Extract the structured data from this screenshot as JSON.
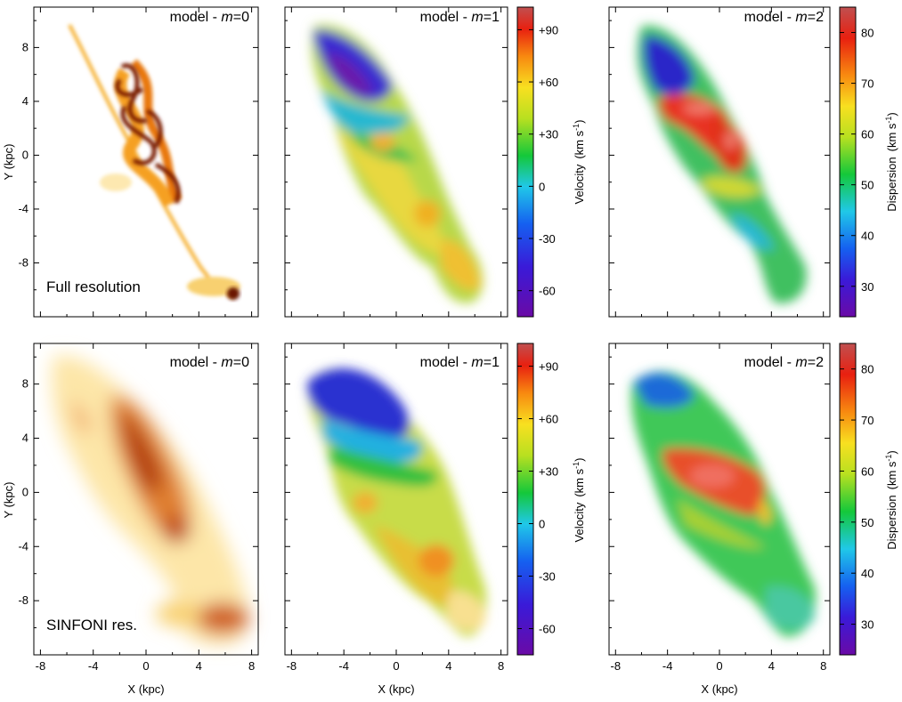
{
  "figure": {
    "rows": [
      {
        "label": "Full resolution"
      },
      {
        "label": "SINFONI res."
      }
    ],
    "axis_labels": {
      "x": "X (kpc)",
      "y": "Y (kpc)"
    },
    "colorbars": [
      {
        "label": "Velocity",
        "unit": "km s",
        "unit_exp": "-1",
        "vmin": -75,
        "vmax": 103,
        "ticks": [
          "+90",
          "+60",
          "+30",
          "0",
          "-30",
          "-60"
        ],
        "tick_values": [
          90,
          60,
          30,
          0,
          -30,
          -60
        ]
      },
      {
        "label": "Dispersion",
        "unit": "km s",
        "unit_exp": "-1",
        "vmin": 24,
        "vmax": 85,
        "ticks": [
          "80",
          "70",
          "60",
          "50",
          "40",
          "30"
        ],
        "tick_values": [
          80,
          70,
          60,
          50,
          40,
          30
        ]
      }
    ],
    "colors": {
      "heat_peak": "#8a1f05",
      "vel_low": "#6a0aa6",
      "vel_high": "#c02020",
      "frame": "#000000"
    }
  },
  "chart_data": [
    {
      "type": "heatmap",
      "panel": "row1-col1",
      "title_prefix": "model - ",
      "title_var": "m",
      "title_value": "=0",
      "quantity": "surface brightness",
      "row_label": "Full resolution",
      "xlim": [
        -8.5,
        8.5
      ],
      "ylim": [
        -12,
        11
      ],
      "xticks": [
        -8,
        -4,
        0,
        4,
        8
      ],
      "yticks": [
        8,
        4,
        0,
        -4,
        -8
      ]
    },
    {
      "type": "heatmap",
      "panel": "row1-col2",
      "title_prefix": "model - ",
      "title_var": "m",
      "title_value": "=1",
      "quantity": "velocity (km/s)",
      "range": [
        -75,
        103
      ]
    },
    {
      "type": "heatmap",
      "panel": "row1-col3",
      "title_prefix": "model - ",
      "title_var": "m",
      "title_value": "=2",
      "quantity": "dispersion (km/s)",
      "range": [
        24,
        85
      ]
    },
    {
      "type": "heatmap",
      "panel": "row2-col1",
      "title_prefix": "model - ",
      "title_var": "m",
      "title_value": "=0",
      "quantity": "surface brightness",
      "row_label": "SINFONI res.",
      "xlim": [
        -8.5,
        8.5
      ],
      "ylim": [
        -12,
        11
      ],
      "xticks": [
        -8,
        -4,
        0,
        4,
        8
      ],
      "yticks": [
        8,
        4,
        0,
        -4,
        -8
      ]
    },
    {
      "type": "heatmap",
      "panel": "row2-col2",
      "title_prefix": "model - ",
      "title_var": "m",
      "title_value": "=1",
      "quantity": "velocity (km/s)",
      "range": [
        -75,
        103
      ]
    },
    {
      "type": "heatmap",
      "panel": "row2-col3",
      "title_prefix": "model - ",
      "title_var": "m",
      "title_value": "=2",
      "quantity": "dispersion (km/s)",
      "range": [
        24,
        85
      ]
    }
  ]
}
